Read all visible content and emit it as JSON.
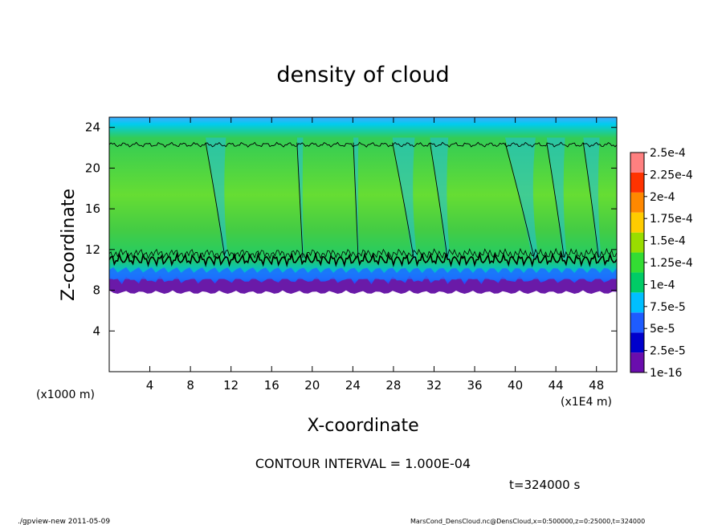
{
  "chart_data": {
    "type": "heatmap",
    "title": "density of cloud",
    "xlabel": "X-coordinate",
    "ylabel": "Z-coordinate",
    "x_unit_left": "(x1000 m)",
    "x_unit_right": "(x1E4 m)",
    "xlim": [
      0,
      50
    ],
    "ylim": [
      0,
      25
    ],
    "x_ticks": [
      4,
      8,
      12,
      16,
      20,
      24,
      28,
      32,
      36,
      40,
      44,
      48
    ],
    "y_ticks": [
      4,
      8,
      12,
      16,
      20,
      24
    ],
    "colorbar": {
      "labels": [
        "1e-16",
        "2.5e-5",
        "5e-5",
        "7.5e-5",
        "1e-4",
        "1.25e-4",
        "1.5e-4",
        "1.75e-4",
        "2e-4",
        "2.25e-4",
        "2.5e-4"
      ],
      "colors": [
        "#6a0dad",
        "#0000cc",
        "#1e5cff",
        "#00bfff",
        "#00cc66",
        "#33dd33",
        "#99dd00",
        "#ffcc00",
        "#ff8800",
        "#ff3300",
        "#ff8080"
      ]
    },
    "contour_interval": "CONTOUR INTERVAL = 1.000E-04",
    "time_label": "t=324000 s",
    "profile": {
      "cloud_base_z": 8.0,
      "purple_top_z": 9.0,
      "blue_top_z": 10.0,
      "contour_low_z": 11.0,
      "contour_high_z": 22.3,
      "top_z": 25.0
    }
  },
  "footer": {
    "left": "./gpview-new   2011-05-09",
    "right": "MarsCond_DensCloud.nc@DensCloud,x=0:500000,z=0:25000,t=324000"
  }
}
